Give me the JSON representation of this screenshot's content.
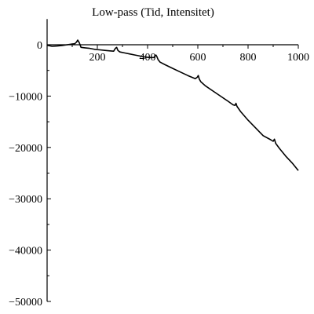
{
  "chart_data": {
    "type": "line",
    "title": "Low-pass (Tid, Intensitet)",
    "xlabel": "",
    "ylabel": "",
    "xlim": [
      0,
      1000
    ],
    "ylim": [
      -50000,
      5000
    ],
    "x_ticks": [
      {
        "value": 200,
        "label": "200"
      },
      {
        "value": 400,
        "label": "400"
      },
      {
        "value": 600,
        "label": "600"
      },
      {
        "value": 800,
        "label": "800"
      },
      {
        "value": 1000,
        "label": "1000"
      }
    ],
    "y_ticks": [
      {
        "value": 0,
        "label": "0"
      },
      {
        "value": -10000,
        "label": "−10000"
      },
      {
        "value": -20000,
        "label": "−20000"
      },
      {
        "value": -30000,
        "label": "−30000"
      },
      {
        "value": -40000,
        "label": "−40000"
      },
      {
        "value": -50000,
        "label": "−50000"
      }
    ],
    "y_minor_ticks": [
      -5000,
      -15000,
      -25000,
      -35000,
      -45000
    ],
    "grid": false,
    "series": [
      {
        "color": "#000000",
        "x": [
          0,
          20,
          40,
          60,
          80,
          100,
          110,
          117,
          122,
          128,
          135,
          150,
          170,
          190,
          210,
          230,
          250,
          265,
          272,
          277,
          282,
          290,
          310,
          330,
          350,
          370,
          390,
          410,
          425,
          433,
          437,
          442,
          450,
          470,
          500,
          530,
          560,
          590,
          598,
          602,
          606,
          612,
          630,
          660,
          690,
          720,
          740,
          748,
          752,
          756,
          770,
          800,
          830,
          860,
          890,
          900,
          905,
          910,
          925,
          950,
          975,
          1000
        ],
        "y": [
          -100,
          -300,
          -250,
          -150,
          0,
          150,
          200,
          500,
          900,
          400,
          -500,
          -600,
          -700,
          -900,
          -1000,
          -1100,
          -1200,
          -1250,
          -700,
          -500,
          -1100,
          -1400,
          -1600,
          -1800,
          -2000,
          -2200,
          -2400,
          -2500,
          -2500,
          -2000,
          -2300,
          -2900,
          -3400,
          -3900,
          -4600,
          -5300,
          -6000,
          -6600,
          -6300,
          -6000,
          -6700,
          -7200,
          -8000,
          -9000,
          -10000,
          -11000,
          -11700,
          -11800,
          -11400,
          -12000,
          -13000,
          -14700,
          -16200,
          -17700,
          -18500,
          -18800,
          -18400,
          -19200,
          -20200,
          -21700,
          -23000,
          -24500
        ]
      }
    ]
  }
}
